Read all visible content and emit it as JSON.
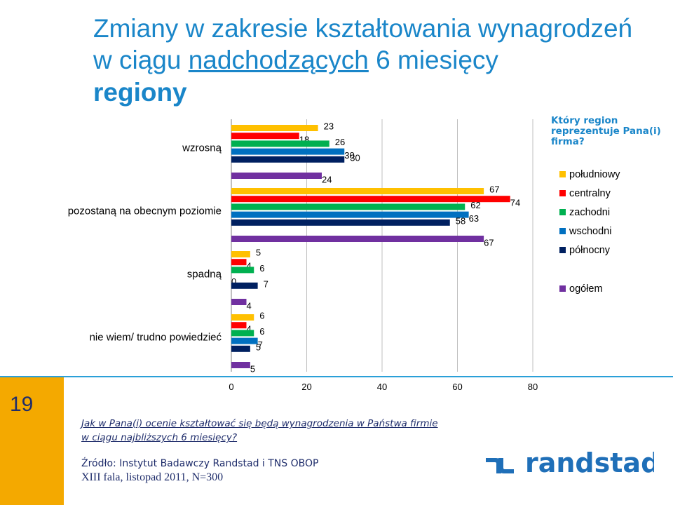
{
  "title": {
    "line1": "Zmiany w zakresie kształtowania wynagrodzeń",
    "line2_prefix": "w ciągu ",
    "line2_underlined": "nadchodzących",
    "line2_suffix": " 6 miesięcy",
    "subtitle": "regiony"
  },
  "legend": {
    "question": "Który region reprezentuje Pana(i) firma?",
    "items": [
      "południowy",
      "centralny",
      "zachodni",
      "wschodni",
      "północny",
      "ogółem"
    ]
  },
  "colors": {
    "południowy": "#ffc000",
    "centralny": "#ff0000",
    "zachodni": "#00b050",
    "wschodni": "#0070c0",
    "północny": "#002060",
    "ogółem": "#7030a0",
    "accent": "#1a86c9",
    "dark": "#1f2d6b",
    "sidebar": "#f4a900"
  },
  "chart_data": {
    "type": "bar",
    "orientation": "horizontal",
    "categories": [
      "wzrosną",
      "pozostaną na obecnym poziomie",
      "spadną",
      "nie wiem/ trudno powiedzieć"
    ],
    "series": [
      {
        "name": "południowy",
        "values": [
          23,
          67,
          5,
          6
        ]
      },
      {
        "name": "centralny",
        "values": [
          18,
          74,
          4,
          4
        ]
      },
      {
        "name": "zachodni",
        "values": [
          26,
          62,
          6,
          6
        ]
      },
      {
        "name": "wschodni",
        "values": [
          30,
          63,
          0,
          7
        ]
      },
      {
        "name": "północny",
        "values": [
          30,
          58,
          7,
          5
        ]
      },
      {
        "name": "ogółem",
        "values": [
          24,
          67,
          4,
          5
        ]
      }
    ],
    "x_ticks": [
      "0",
      "20",
      "40",
      "60",
      "80"
    ],
    "xlim": [
      0,
      80
    ],
    "grid": true,
    "legend_position": "right"
  },
  "footer": {
    "page_number": "19",
    "question": "Jak w Pana(i) ocenie kształtować się będą wynagrodzenia w Państwa firmie w ciągu najbliższych 6 miesięcy?",
    "source_line1": "Źródło: Instytut Badawczy Randstad i TNS OBOP",
    "source_line2": "XIII fala, listopad 2011, N=300",
    "logo_text": "randstad"
  }
}
